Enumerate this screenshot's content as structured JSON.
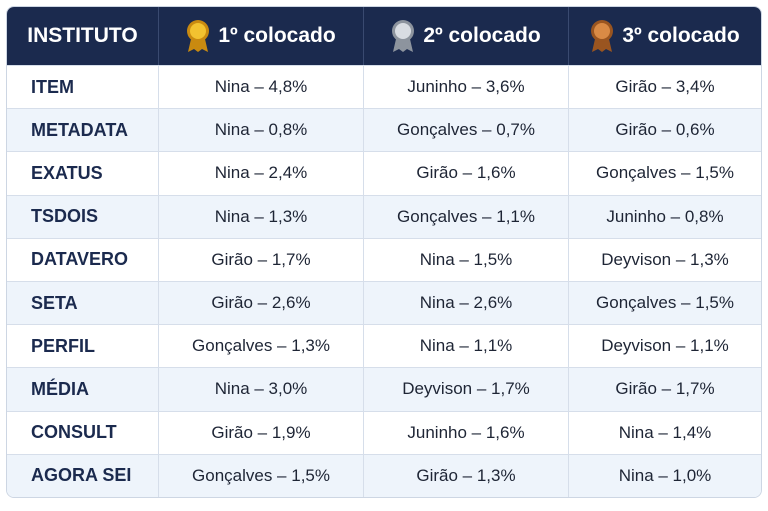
{
  "table": {
    "header": [
      "INSTITUTO",
      "1º colocado",
      "2º colocado",
      "3º colocado"
    ],
    "rows": [
      [
        "ITEM",
        "Nina – 4,8%",
        "Juninho – 3,6%",
        "Girão – 3,4%"
      ],
      [
        "METADATA",
        "Nina – 0,8%",
        "Gonçalves – 0,7%",
        "Girão – 0,6%"
      ],
      [
        "EXATUS",
        "Nina – 2,4%",
        "Girão – 1,6%",
        "Gonçalves – 1,5%"
      ],
      [
        "TSDOIS",
        "Nina – 1,3%",
        "Gonçalves – 1,1%",
        "Juninho – 0,8%"
      ],
      [
        "DATAVERO",
        "Girão – 1,7%",
        "Nina – 1,5%",
        "Deyvison – 1,3%"
      ],
      [
        "SETA",
        "Girão – 2,6%",
        "Nina – 2,6%",
        "Gonçalves – 1,5%"
      ],
      [
        "PERFIL",
        "Gonçalves – 1,3%",
        "Nina – 1,1%",
        "Deyvison – 1,1%"
      ],
      [
        "MÉDIA",
        "Nina – 3,0%",
        "Deyvison – 1,7%",
        "Girão – 1,7%"
      ],
      [
        "CONSULT",
        "Girão – 1,9%",
        "Juninho – 1,6%",
        "Nina – 1,4%"
      ],
      [
        "AGORA SEI",
        "Gonçalves – 1,5%",
        "Girão – 1,3%",
        "Nina – 1,0%"
      ]
    ]
  }
}
